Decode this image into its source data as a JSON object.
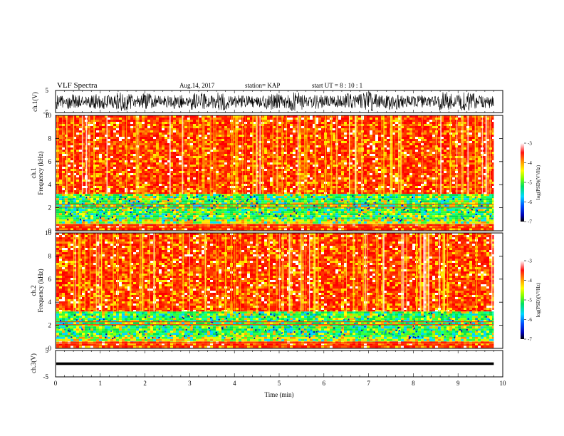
{
  "header": {
    "title": "VLF Spectra",
    "date": "Aug.14, 2017",
    "station": "station= KAP",
    "start": "start UT = 8 : 10 : 1"
  },
  "chart_data": [
    {
      "id": "ch1-waveform",
      "type": "line",
      "ylabel": "ch.1(V)",
      "ylim": [
        -5,
        5
      ],
      "yticks": [
        "5",
        "-5"
      ],
      "xlim": [
        0,
        10
      ],
      "x_data_max": 9.8,
      "description_values": {
        "mean": 0,
        "amplitude": 2.5
      }
    },
    {
      "id": "ch1-spectrogram",
      "type": "heatmap",
      "ylabel": "ch.1 Frequency (kHz)",
      "ylim": [
        0,
        10
      ],
      "yticks": [
        "0",
        "2",
        "4",
        "6",
        "8",
        "10"
      ],
      "xlim": [
        0,
        10
      ],
      "x_data_max": 9.8,
      "bands": [
        {
          "from": 0,
          "to": 0.6,
          "level": "red-orange"
        },
        {
          "from": 0.6,
          "to": 1.0,
          "level": "green-yellow"
        },
        {
          "from": 1.0,
          "to": 3.2,
          "level": "green-cyan"
        },
        {
          "from": 3.2,
          "to": 10,
          "level": "red-orange"
        }
      ],
      "colorbar": {
        "label": "log(PSD)(V²/Hz)",
        "range": [
          -7,
          -3
        ],
        "ticks": [
          "-3",
          "-4",
          "-5",
          "-6",
          "-7"
        ]
      }
    },
    {
      "id": "ch2-spectrogram",
      "type": "heatmap",
      "ylabel": "ch.2 Frequency (kHz)",
      "ylim": [
        0,
        10
      ],
      "yticks": [
        "0",
        "2",
        "4",
        "6",
        "8",
        "10"
      ],
      "xlim": [
        0,
        10
      ],
      "x_data_max": 9.8,
      "bands": [
        {
          "from": 0,
          "to": 0.6,
          "level": "red-orange"
        },
        {
          "from": 0.6,
          "to": 1.0,
          "level": "green-yellow"
        },
        {
          "from": 1.0,
          "to": 3.2,
          "level": "green-cyan"
        },
        {
          "from": 3.2,
          "to": 10,
          "level": "red-orange"
        }
      ],
      "colorbar": {
        "label": "log(PSD)(V²/Hz)",
        "range": [
          -7,
          -3
        ],
        "ticks": [
          "-3",
          "-4",
          "-5",
          "-6",
          "-7"
        ]
      }
    },
    {
      "id": "ch3-waveform",
      "type": "line",
      "ylabel": "ch.3(V)",
      "ylim": [
        -5,
        5
      ],
      "yticks": [
        "5",
        "-5"
      ],
      "xlim": [
        0,
        10
      ],
      "x_data_max": 9.8,
      "constant_value": 0,
      "xlabel": "Time (min)",
      "xticks": [
        "0",
        "1",
        "2",
        "3",
        "4",
        "5",
        "6",
        "7",
        "8",
        "9",
        "10"
      ]
    }
  ]
}
